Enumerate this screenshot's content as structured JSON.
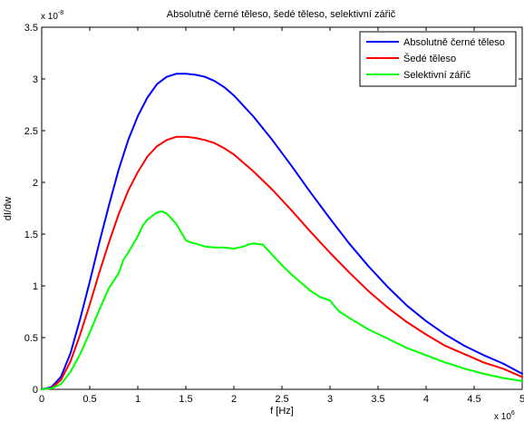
{
  "chart_data": {
    "type": "line",
    "title": "Absolutně černé těleso, šedé těleso, selektivní zářič",
    "xlabel": "f [Hz]",
    "ylabel": "dI/dw",
    "x_exponent_label": "x 10",
    "x_exponent_power": "6",
    "y_exponent_label": "x 10",
    "y_exponent_power": "-8",
    "xlim": [
      0,
      5
    ],
    "ylim": [
      0,
      3.5
    ],
    "x_ticks": [
      0,
      0.5,
      1,
      1.5,
      2,
      2.5,
      3,
      3.5,
      4,
      4.5,
      5
    ],
    "x_tick_labels": [
      "0",
      "0.5",
      "1",
      "1.5",
      "2",
      "2.5",
      "3",
      "3.5",
      "4",
      "4.5",
      "5"
    ],
    "y_ticks": [
      0,
      0.5,
      1,
      1.5,
      2,
      2.5,
      3,
      3.5
    ],
    "y_tick_labels": [
      "0",
      "0.5",
      "1",
      "1.5",
      "2",
      "2.5",
      "3",
      "3.5"
    ],
    "grid": false,
    "legend_position": "top-right",
    "series": [
      {
        "name": "Absolutně černé těleso",
        "color": "#0000ff",
        "x": [
          0,
          0.1,
          0.2,
          0.3,
          0.4,
          0.5,
          0.6,
          0.7,
          0.8,
          0.9,
          1.0,
          1.1,
          1.2,
          1.3,
          1.4,
          1.5,
          1.6,
          1.7,
          1.8,
          1.9,
          2.0,
          2.2,
          2.4,
          2.6,
          2.8,
          3.0,
          3.2,
          3.4,
          3.6,
          3.8,
          4.0,
          4.2,
          4.4,
          4.6,
          4.8,
          5.0
        ],
        "y": [
          0,
          0.02,
          0.12,
          0.35,
          0.68,
          1.04,
          1.42,
          1.78,
          2.12,
          2.41,
          2.64,
          2.82,
          2.95,
          3.02,
          3.05,
          3.05,
          3.04,
          3.02,
          2.98,
          2.92,
          2.84,
          2.64,
          2.41,
          2.16,
          1.9,
          1.65,
          1.41,
          1.19,
          0.99,
          0.81,
          0.66,
          0.53,
          0.42,
          0.33,
          0.25,
          0.15
        ]
      },
      {
        "name": "Šedé těleso",
        "color": "#ff0000",
        "x": [
          0,
          0.1,
          0.2,
          0.3,
          0.4,
          0.5,
          0.6,
          0.7,
          0.8,
          0.9,
          1.0,
          1.1,
          1.2,
          1.3,
          1.4,
          1.5,
          1.6,
          1.7,
          1.8,
          1.9,
          2.0,
          2.2,
          2.4,
          2.6,
          2.8,
          3.0,
          3.2,
          3.4,
          3.6,
          3.8,
          4.0,
          4.2,
          4.4,
          4.6,
          4.8,
          5.0
        ],
        "y": [
          0,
          0.01,
          0.09,
          0.27,
          0.53,
          0.82,
          1.13,
          1.42,
          1.69,
          1.92,
          2.1,
          2.25,
          2.35,
          2.41,
          2.44,
          2.44,
          2.43,
          2.41,
          2.38,
          2.33,
          2.27,
          2.11,
          1.93,
          1.73,
          1.52,
          1.32,
          1.13,
          0.95,
          0.79,
          0.65,
          0.53,
          0.42,
          0.34,
          0.26,
          0.2,
          0.12
        ]
      },
      {
        "name": "Selektivní zářič",
        "color": "#00ff00",
        "x": [
          0,
          0.1,
          0.2,
          0.3,
          0.4,
          0.5,
          0.6,
          0.7,
          0.8,
          0.85,
          0.9,
          1.0,
          1.05,
          1.1,
          1.2,
          1.25,
          1.3,
          1.4,
          1.45,
          1.5,
          1.55,
          1.6,
          1.7,
          1.8,
          1.9,
          2.0,
          2.05,
          2.1,
          2.15,
          2.2,
          2.3,
          2.4,
          2.5,
          2.6,
          2.7,
          2.8,
          2.9,
          3.0,
          3.05,
          3.1,
          3.2,
          3.4,
          3.6,
          3.8,
          4.0,
          4.2,
          4.4,
          4.6,
          4.8,
          5.0
        ],
        "y": [
          0,
          0.01,
          0.05,
          0.17,
          0.34,
          0.55,
          0.77,
          0.98,
          1.12,
          1.25,
          1.32,
          1.48,
          1.58,
          1.64,
          1.71,
          1.72,
          1.7,
          1.6,
          1.52,
          1.44,
          1.42,
          1.41,
          1.38,
          1.37,
          1.37,
          1.36,
          1.37,
          1.38,
          1.4,
          1.41,
          1.4,
          1.3,
          1.2,
          1.11,
          1.03,
          0.95,
          0.89,
          0.86,
          0.8,
          0.75,
          0.69,
          0.58,
          0.49,
          0.4,
          0.33,
          0.26,
          0.2,
          0.15,
          0.11,
          0.08
        ]
      }
    ]
  }
}
